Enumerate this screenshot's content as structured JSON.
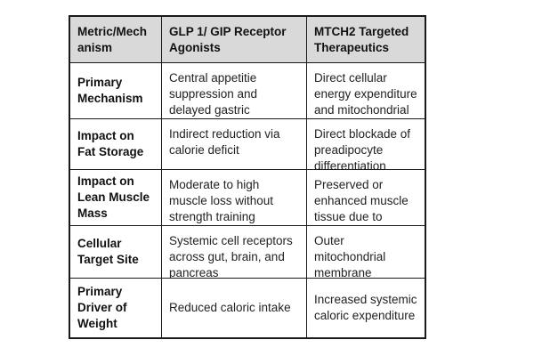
{
  "table": {
    "headers": [
      "Metric/Mech anism",
      "GLP 1/ GIP Receptor Agonists",
      "MTCH2 Targeted Therapeutics"
    ],
    "rows": [
      {
        "label": "Primary Mechanism",
        "glp": "Central appetitie suppression and delayed gastric",
        "mtch2": "Direct cellular energy expenditure and mitochondrial"
      },
      {
        "label": "Impact on Fat Storage",
        "glp": "Indirect reduction via calorie deficit",
        "mtch2": "Direct blockade of preadipocyte differentiation"
      },
      {
        "label": "Impact on Lean Muscle Mass",
        "glp": "Moderate to high muscle loss without strength training",
        "mtch2": "Preserved or enhanced muscle tissue due to forced"
      },
      {
        "label": "Cellular Target Site",
        "glp": "Systemic cell receptors across gut, brain, and pancreas",
        "mtch2": "Outer mitochondrial membrane proteins"
      },
      {
        "label": "Primary Driver of Weight",
        "glp": "Reduced caloric intake",
        "mtch2": "Increased systemic caloric expenditure"
      }
    ]
  }
}
